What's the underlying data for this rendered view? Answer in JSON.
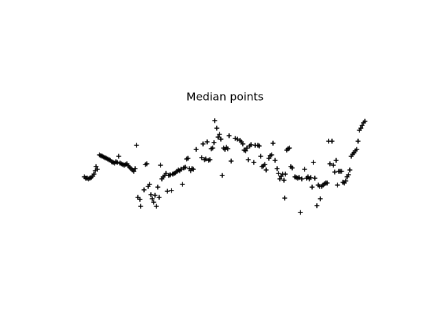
{
  "chart_data": {
    "type": "scatter",
    "title": "Median points",
    "color": "#000000",
    "marker": "+",
    "xlim": [
      80,
      576
    ],
    "ylim": [
      53,
      422
    ],
    "x": [
      123,
      125,
      127,
      129,
      131,
      133,
      135,
      137,
      139,
      140,
      142,
      145,
      147,
      149,
      151,
      153,
      155,
      157,
      159,
      161,
      163,
      165,
      167,
      169,
      171,
      173,
      175,
      177,
      179,
      181,
      183,
      185,
      187,
      189,
      191,
      193,
      195,
      197,
      199,
      201,
      204,
      205,
      210,
      212,
      214,
      216,
      218,
      220,
      222,
      224,
      226,
      228,
      230,
      232,
      234,
      236,
      238,
      240,
      242,
      244,
      246,
      248,
      250,
      252,
      254,
      256,
      258,
      260,
      262,
      264,
      266,
      268,
      270,
      272,
      274,
      276,
      278,
      280,
      282,
      286,
      294,
      296,
      298,
      300,
      302,
      304,
      306,
      308,
      310,
      312,
      313,
      316,
      318,
      320,
      322,
      324,
      326,
      328,
      330,
      332,
      334,
      337,
      343,
      346,
      350,
      352,
      354,
      356,
      358,
      360,
      362,
      364,
      366,
      370,
      372,
      376,
      378,
      380,
      382,
      384,
      386,
      388,
      392,
      394,
      396,
      398,
      401,
      404,
      406,
      408,
      410,
      412,
      414,
      415,
      416,
      418,
      420,
      422,
      424,
      426,
      430,
      432,
      434,
      436,
      438,
      440,
      444,
      447,
      449,
      451,
      453,
      455,
      457,
      459,
      462,
      464,
      466,
      467,
      469,
      471,
      473,
      475,
      477,
      479,
      481,
      484,
      486,
      488,
      490,
      492,
      494,
      496,
      498,
      500,
      502,
      504,
      506,
      508,
      510,
      512,
      514,
      516,
      518,
      520,
      522,
      524,
      526,
      528,
      530,
      532
    ],
    "values": [
      222,
      220,
      220,
      219,
      220,
      221,
      223,
      226,
      231,
      237,
      233,
      254,
      253,
      252,
      251,
      250,
      249,
      248,
      247,
      246,
      244,
      243,
      242,
      244,
      243,
      252,
      242,
      241,
      240,
      239,
      240,
      241,
      238,
      236,
      234,
      232,
      230,
      234,
      268,
      192,
      189,
      179,
      203,
      240,
      241,
      208,
      211,
      196,
      190,
      185,
      195,
      179,
      207,
      192,
      239,
      219,
      222,
      224,
      227,
      201,
      224,
      225,
      202,
      226,
      227,
      228,
      230,
      232,
      231,
      233,
      211,
      235,
      236,
      248,
      249,
      234,
      231,
      234,
      233,
      262,
      250,
      270,
      247,
      248,
      273,
      246,
      247,
      263,
      264,
      272,
      304,
      293,
      280,
      284,
      277,
      224,
      264,
      262,
      265,
      263,
      282,
      245,
      278,
      277,
      275,
      273,
      270,
      261,
      260,
      264,
      247,
      267,
      269,
      243,
      268,
      268,
      267,
      252,
      237,
      238,
      240,
      232,
      249,
      253,
      254,
      271,
      246,
      234,
      227,
      219,
      223,
      226,
      217,
      191,
      226,
      261,
      263,
      264,
      237,
      235,
      222,
      221,
      220,
      221,
      170,
      219,
      233,
      220,
      222,
      219,
      221,
      207,
      243,
      220,
      180,
      210,
      208,
      190,
      208,
      210,
      212,
      213,
      213,
      274,
      241,
      274,
      239,
      229,
      246,
      210,
      230,
      230,
      230,
      214,
      213,
      216,
      222,
      225,
      232,
      252,
      255,
      257,
      260,
      262,
      274,
      290,
      293,
      297,
      301,
      303
    ]
  }
}
